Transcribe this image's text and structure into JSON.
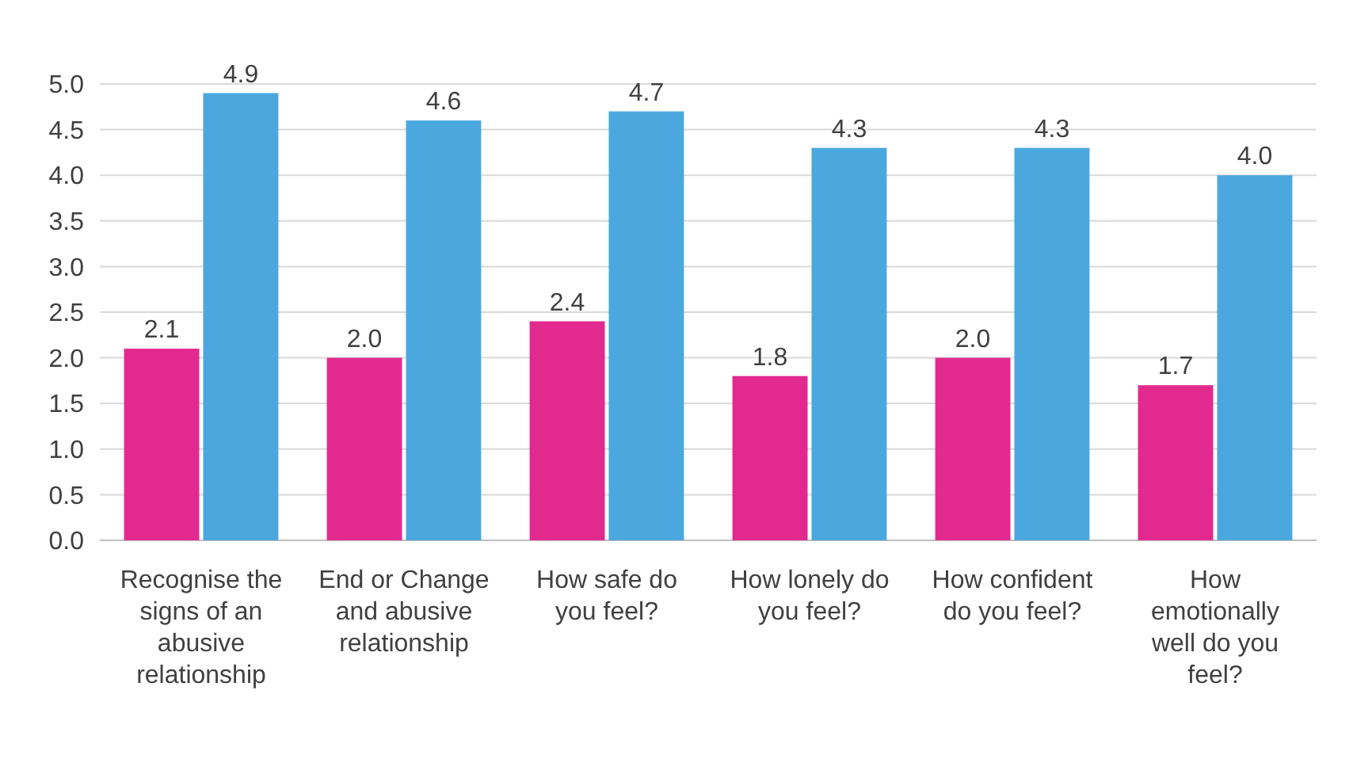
{
  "chart_data": {
    "type": "bar",
    "categories": [
      "Recognise the signs of an abusive relationship",
      "End or Change and abusive relationship",
      "How safe do you feel?",
      "How lonely do you feel?",
      "How confident do you feel?",
      "How emotionally well do you feel?"
    ],
    "series": [
      {
        "color": "#e22a8e",
        "values": [
          2.1,
          2.0,
          2.4,
          1.8,
          2.0,
          1.7
        ],
        "value_labels": [
          "2.1",
          "2.0",
          "2.4",
          "1.8",
          "2.0",
          "1.7"
        ]
      },
      {
        "color": "#4ba8df",
        "values": [
          4.9,
          4.6,
          4.7,
          4.3,
          4.3,
          4.0
        ],
        "value_labels": [
          "4.9",
          "4.6",
          "4.7",
          "4.3",
          "4.3",
          "4.0"
        ]
      }
    ],
    "ylim": [
      0,
      5
    ],
    "yticks": [
      {
        "value": 0,
        "label": "0.0"
      },
      {
        "value": 0.5,
        "label": "0.5"
      },
      {
        "value": 1,
        "label": "1.0"
      },
      {
        "value": 1.5,
        "label": "1.5"
      },
      {
        "value": 2,
        "label": "2.0"
      },
      {
        "value": 2.5,
        "label": "2.5"
      },
      {
        "value": 3,
        "label": "3.0"
      },
      {
        "value": 3.5,
        "label": "3.5"
      },
      {
        "value": 4,
        "label": "4.0"
      },
      {
        "value": 4.5,
        "label": "4.5"
      },
      {
        "value": 5,
        "label": "5.0"
      }
    ],
    "grid": true
  }
}
